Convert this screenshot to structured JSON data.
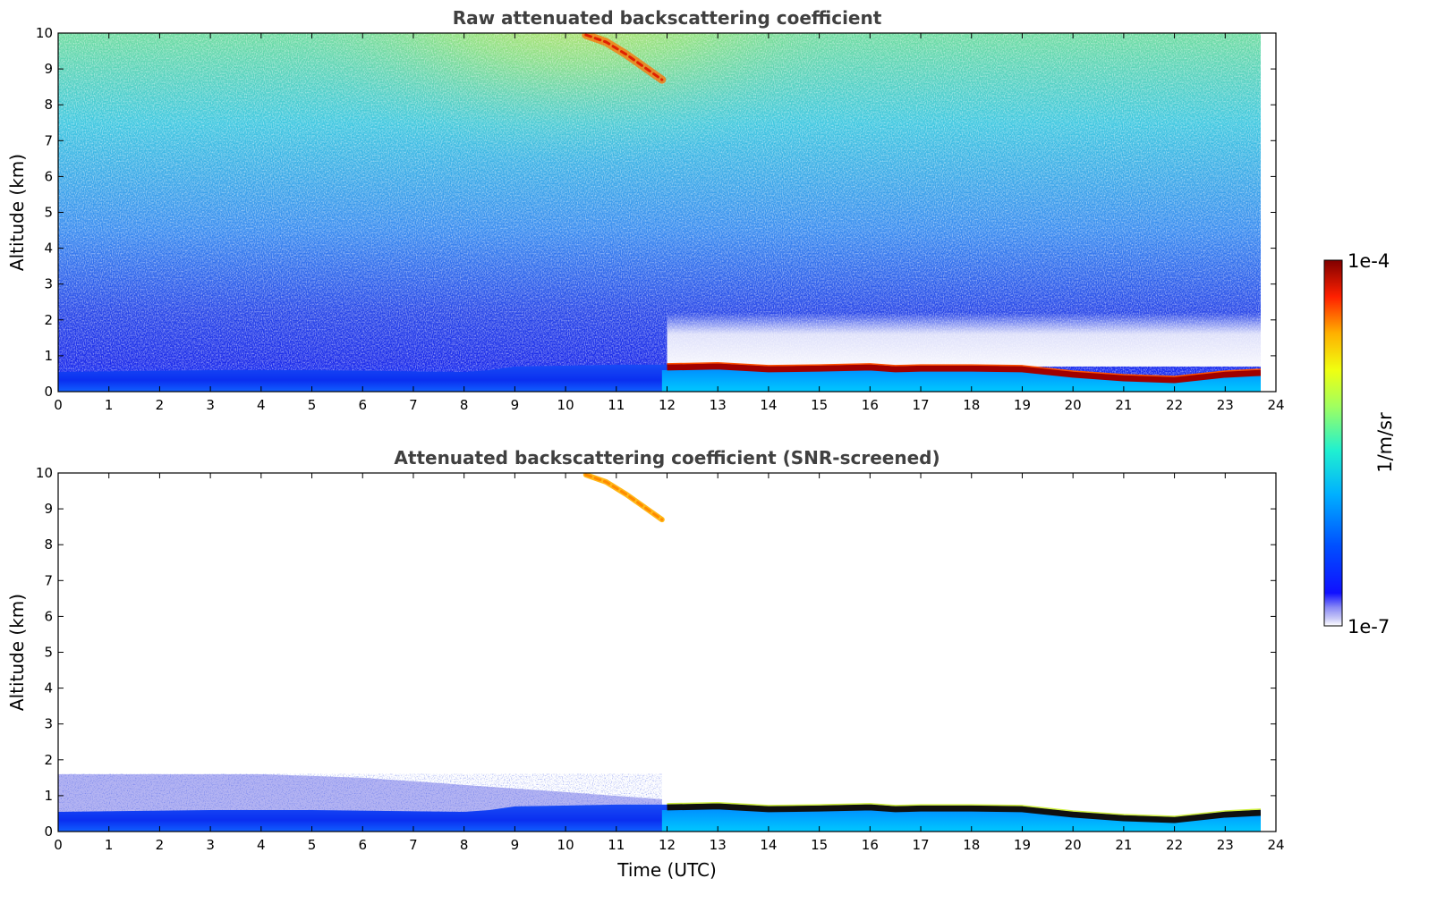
{
  "chart_data": [
    {
      "type": "heatmap",
      "title": "Raw attenuated backscattering coefficient",
      "ylabel": "Altitude (km)",
      "xlabel": "",
      "xlim": [
        0,
        24
      ],
      "ylim": [
        0,
        10
      ],
      "xticks": [
        0,
        1,
        2,
        3,
        4,
        5,
        6,
        7,
        8,
        9,
        10,
        11,
        12,
        13,
        14,
        15,
        16,
        17,
        18,
        19,
        20,
        21,
        22,
        23,
        24
      ],
      "yticks": [
        0,
        1,
        2,
        3,
        4,
        5,
        6,
        7,
        8,
        9,
        10
      ],
      "data_end_time": 23.7,
      "layers": [
        {
          "name": "boundary layer top (km)",
          "x": [
            0,
            3,
            5,
            8,
            8.5,
            9,
            11,
            11.9,
            12,
            13,
            14,
            15,
            16,
            16.5,
            17,
            18,
            19,
            20,
            21,
            22,
            23,
            23.7
          ],
          "y": [
            0.55,
            0.6,
            0.6,
            0.55,
            0.6,
            0.7,
            0.75,
            0.75,
            0.75,
            0.78,
            0.7,
            0.72,
            0.75,
            0.7,
            0.72,
            0.72,
            0.7,
            0.55,
            0.45,
            0.4,
            0.55,
            0.6
          ]
        },
        {
          "name": "cirrus (km)",
          "x": [
            10.4,
            10.8,
            11.2,
            11.6,
            11.9
          ],
          "y": [
            9.95,
            9.75,
            9.4,
            9.0,
            8.7
          ]
        }
      ]
    },
    {
      "type": "heatmap",
      "title": "Attenuated backscattering coefficient (SNR-screened)",
      "ylabel": "Altitude (km)",
      "xlabel": "Time (UTC)",
      "xlim": [
        0,
        24
      ],
      "ylim": [
        0,
        10
      ],
      "xticks": [
        0,
        1,
        2,
        3,
        4,
        5,
        6,
        7,
        8,
        9,
        10,
        11,
        12,
        13,
        14,
        15,
        16,
        17,
        18,
        19,
        20,
        21,
        22,
        23,
        24
      ],
      "yticks": [
        0,
        1,
        2,
        3,
        4,
        5,
        6,
        7,
        8,
        9,
        10
      ],
      "data_end_time": 23.7,
      "layers": [
        {
          "name": "boundary layer top (km)",
          "x": [
            0,
            3,
            5,
            8,
            8.5,
            9,
            11,
            11.9,
            12,
            13,
            14,
            15,
            16,
            16.5,
            17,
            18,
            19,
            20,
            21,
            22,
            23,
            23.7
          ],
          "y": [
            0.55,
            0.6,
            0.6,
            0.55,
            0.6,
            0.7,
            0.75,
            0.75,
            0.75,
            0.78,
            0.7,
            0.72,
            0.75,
            0.7,
            0.72,
            0.72,
            0.7,
            0.55,
            0.45,
            0.4,
            0.55,
            0.6
          ]
        },
        {
          "name": "aerosol layer top (km)",
          "x": [
            0,
            4,
            6,
            8,
            10,
            11.9
          ],
          "y": [
            1.6,
            1.6,
            1.5,
            1.3,
            1.1,
            0.9
          ]
        },
        {
          "name": "cirrus (km)",
          "x": [
            10.4,
            10.8,
            11.2,
            11.6,
            11.9
          ],
          "y": [
            9.95,
            9.75,
            9.4,
            9.0,
            8.7
          ]
        }
      ]
    }
  ],
  "colorbar": {
    "label": "1/m/sr",
    "max_label": "1e-4",
    "min_label": "1e-7",
    "colormap": "jet",
    "scale": "log",
    "range": [
      1e-07,
      0.0001
    ]
  }
}
